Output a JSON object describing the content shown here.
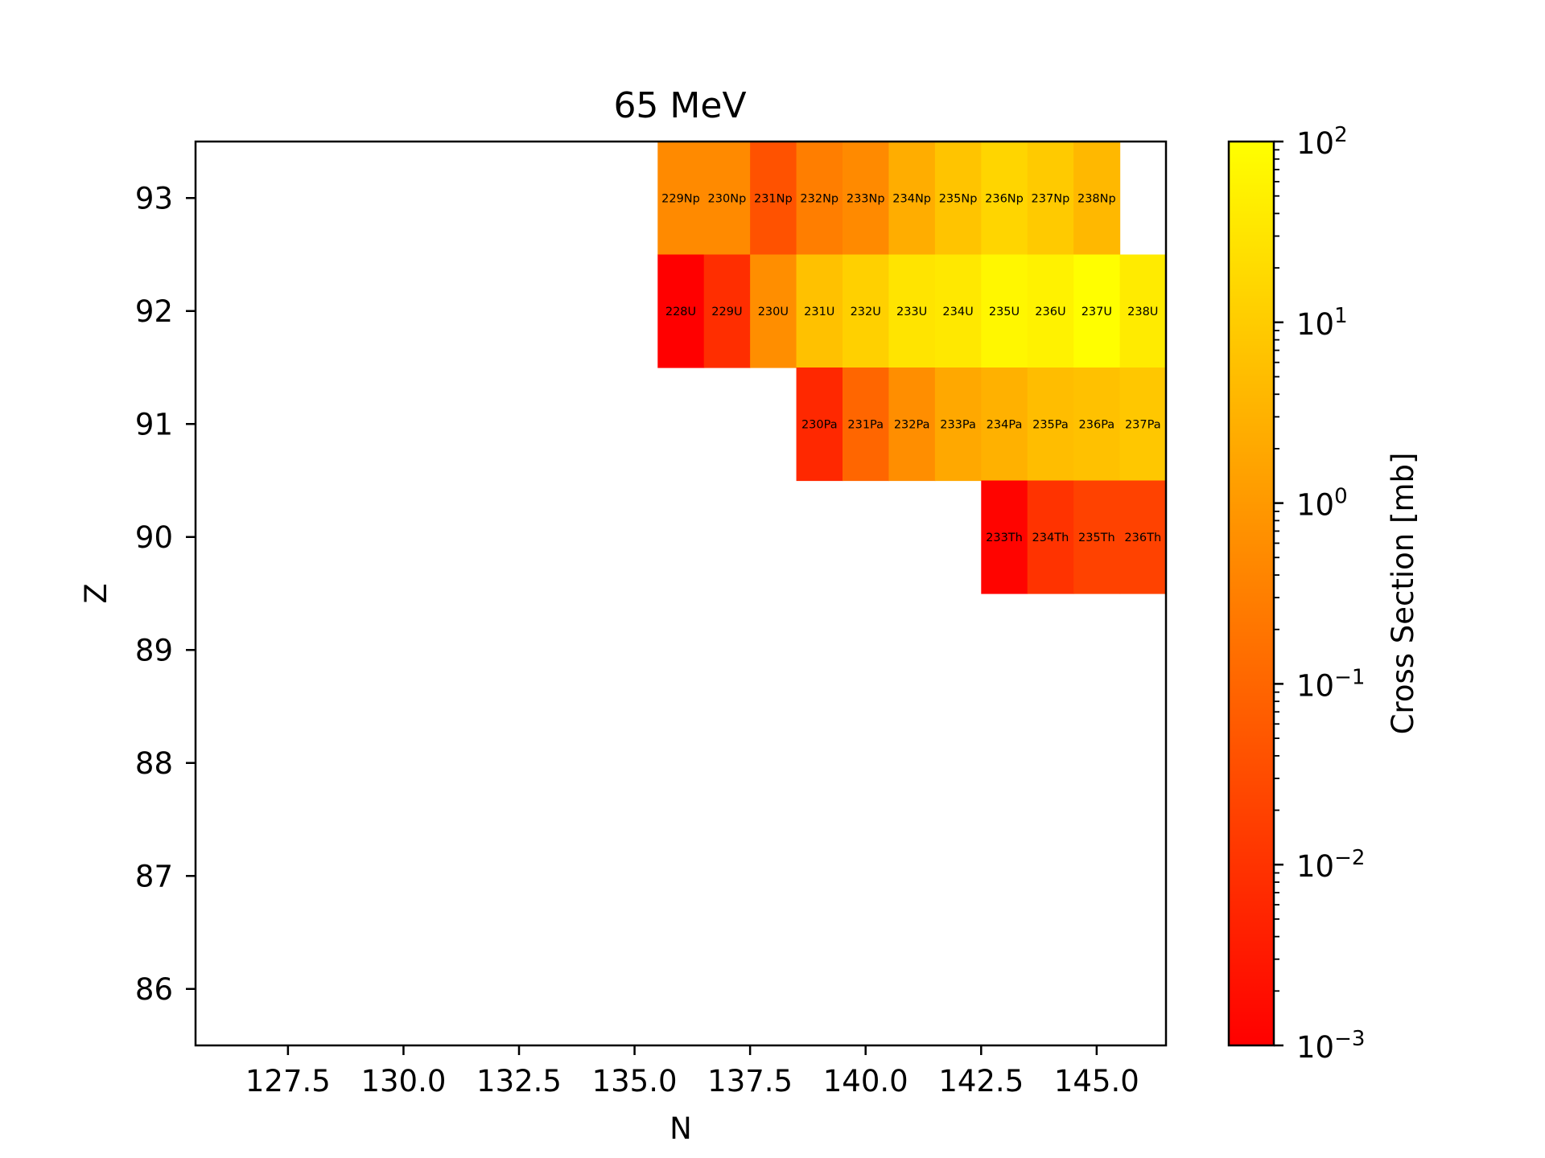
{
  "chart_data": {
    "type": "heatmap",
    "title": "65 MeV",
    "xlabel": "N",
    "ylabel": "Z",
    "xlim": [
      125.5,
      146.5
    ],
    "ylim": [
      85.5,
      93.5
    ],
    "xticks": [
      127.5,
      130.0,
      132.5,
      135.0,
      137.5,
      140.0,
      142.5,
      145.0
    ],
    "xtick_labels": [
      "127.5",
      "130.0",
      "132.5",
      "135.0",
      "137.5",
      "140.0",
      "142.5",
      "145.0"
    ],
    "yticks": [
      86,
      87,
      88,
      89,
      90,
      91,
      92,
      93
    ],
    "ytick_labels": [
      "86",
      "87",
      "88",
      "89",
      "90",
      "91",
      "92",
      "93"
    ],
    "colorbar": {
      "label": "Cross Section [mb]",
      "scale": "log",
      "range": [
        0.001,
        100
      ],
      "colormap": "autumn",
      "color_low": "#ff0000",
      "color_high": "#ffff00",
      "tick_values": [
        0.001,
        0.01,
        0.1,
        1,
        10,
        100
      ],
      "tick_base": "10",
      "tick_exponents": [
        "−3",
        "−2",
        "−1",
        "0",
        "1",
        "2"
      ]
    },
    "grid": false,
    "cells": [
      {
        "label": "229Np",
        "N": 136,
        "Z": 93,
        "value": 0.5
      },
      {
        "label": "230Np",
        "N": 137,
        "Z": 93,
        "value": 0.5
      },
      {
        "label": "231Np",
        "N": 138,
        "Z": 93,
        "value": 0.04
      },
      {
        "label": "232Np",
        "N": 139,
        "Z": 93,
        "value": 0.3
      },
      {
        "label": "233Np",
        "N": 140,
        "Z": 93,
        "value": 0.5
      },
      {
        "label": "234Np",
        "N": 141,
        "Z": 93,
        "value": 2.5
      },
      {
        "label": "235Np",
        "N": 142,
        "Z": 93,
        "value": 7
      },
      {
        "label": "236Np",
        "N": 143,
        "Z": 93,
        "value": 15
      },
      {
        "label": "237Np",
        "N": 144,
        "Z": 93,
        "value": 9
      },
      {
        "label": "238Np",
        "N": 145,
        "Z": 93,
        "value": 4
      },
      {
        "label": "228U",
        "N": 136,
        "Z": 92,
        "value": 0.001
      },
      {
        "label": "229U",
        "N": 137,
        "Z": 92,
        "value": 0.008
      },
      {
        "label": "230U",
        "N": 138,
        "Z": 92,
        "value": 0.6
      },
      {
        "label": "231U",
        "N": 139,
        "Z": 92,
        "value": 6
      },
      {
        "label": "232U",
        "N": 140,
        "Z": 92,
        "value": 12
      },
      {
        "label": "233U",
        "N": 141,
        "Z": 92,
        "value": 30
      },
      {
        "label": "234U",
        "N": 142,
        "Z": 92,
        "value": 35
      },
      {
        "label": "235U",
        "N": 143,
        "Z": 92,
        "value": 70
      },
      {
        "label": "236U",
        "N": 144,
        "Z": 92,
        "value": 55
      },
      {
        "label": "237U",
        "N": 145,
        "Z": 92,
        "value": 95
      },
      {
        "label": "238U",
        "N": 146,
        "Z": 92,
        "value": 40
      },
      {
        "label": "230Pa",
        "N": 139,
        "Z": 91,
        "value": 0.006
      },
      {
        "label": "231Pa",
        "N": 140,
        "Z": 91,
        "value": 0.1
      },
      {
        "label": "232Pa",
        "N": 141,
        "Z": 91,
        "value": 0.6
      },
      {
        "label": "233Pa",
        "N": 142,
        "Z": 91,
        "value": 2
      },
      {
        "label": "234Pa",
        "N": 143,
        "Z": 91,
        "value": 3
      },
      {
        "label": "235Pa",
        "N": 144,
        "Z": 91,
        "value": 5
      },
      {
        "label": "236Pa",
        "N": 145,
        "Z": 91,
        "value": 6
      },
      {
        "label": "237Pa",
        "N": 146,
        "Z": 91,
        "value": 8
      },
      {
        "label": "233Th",
        "N": 143,
        "Z": 90,
        "value": 0.0012
      },
      {
        "label": "234Th",
        "N": 144,
        "Z": 90,
        "value": 0.01
      },
      {
        "label": "235Th",
        "N": 145,
        "Z": 90,
        "value": 0.02
      },
      {
        "label": "236Th",
        "N": 146,
        "Z": 90,
        "value": 0.02
      }
    ]
  }
}
